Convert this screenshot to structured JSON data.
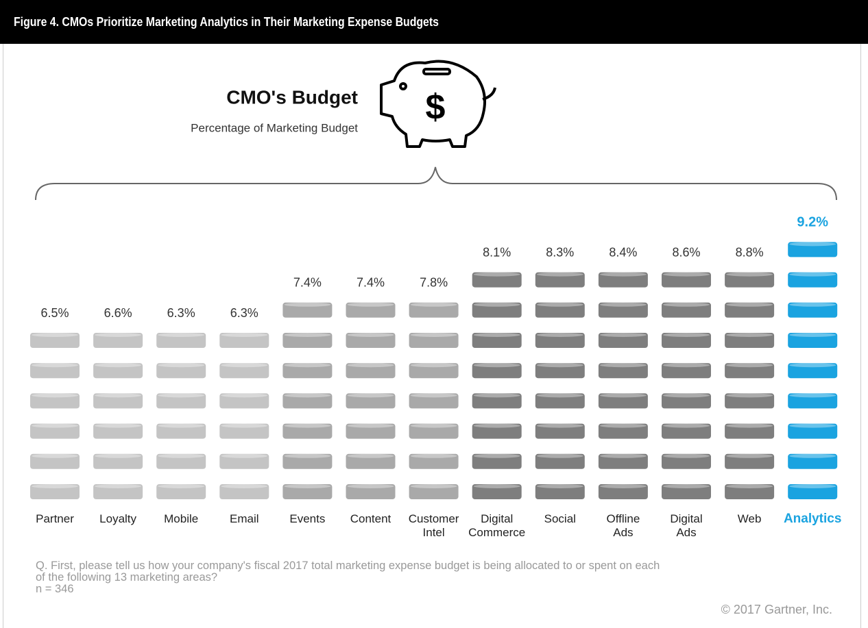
{
  "chart_data": {
    "type": "pictograph",
    "figure_title": "Figure 4. CMOs Prioritize Marketing Analytics in Their Marketing Expense Budgets",
    "title": "CMO's Budget",
    "subtitle": "Percentage of Marketing Budget",
    "categories": [
      "Partner",
      "Loyalty",
      "Mobile",
      "Email",
      "Events",
      "Content",
      "Customer\nIntel",
      "Digital\nCommerce",
      "Social",
      "Offline\nAds",
      "Digital\nAds",
      "Web",
      "Analytics"
    ],
    "values": [
      6.5,
      6.6,
      6.3,
      6.3,
      7.4,
      7.4,
      7.8,
      8.1,
      8.3,
      8.4,
      8.6,
      8.8,
      9.2
    ],
    "value_labels": [
      "6.5%",
      "6.6%",
      "6.3%",
      "6.3%",
      "7.4%",
      "7.4%",
      "7.8%",
      "8.1%",
      "8.3%",
      "8.4%",
      "8.6%",
      "8.8%",
      "9.2%"
    ],
    "colors": [
      "#c4c4c4",
      "#c4c4c4",
      "#c4c4c4",
      "#c4c4c4",
      "#a9a9a9",
      "#a9a9a9",
      "#a9a9a9",
      "#7e7e7e",
      "#7e7e7e",
      "#7e7e7e",
      "#7e7e7e",
      "#7e7e7e",
      "#1aa3e0"
    ],
    "highlight": "Analytics",
    "note": "Q. First, please tell us how your company's fiscal 2017 total marketing expense budget is being allocated to or spent on each\nof the following 13 marketing areas?\nn = 346",
    "source": "©  2017 Gartner, Inc."
  }
}
